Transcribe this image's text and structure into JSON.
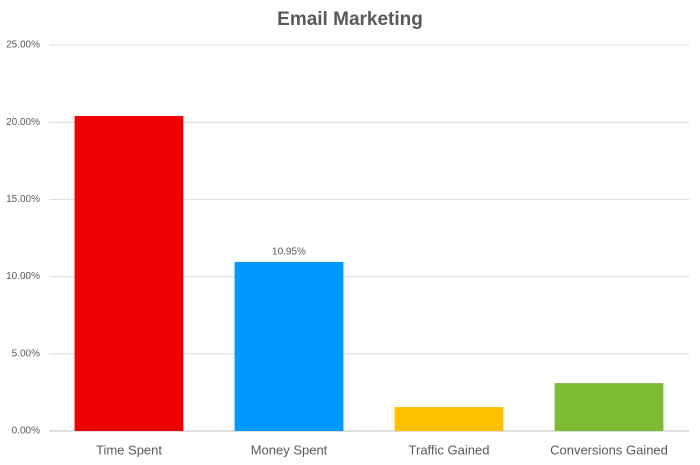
{
  "chart_data": {
    "type": "bar",
    "title": "Email Marketing",
    "categories": [
      "Time Spent",
      "Money Spent",
      "Traffic Gained",
      "Conversions Gained"
    ],
    "values": [
      20.4,
      10.95,
      1.55,
      3.1
    ],
    "value_labels": [
      null,
      "10.95%",
      null,
      null
    ],
    "colors": [
      "#ee0000",
      "#0099ff",
      "#ffc000",
      "#7dbb32"
    ],
    "ylim": [
      0,
      25
    ],
    "yticks": [
      {
        "value": 0,
        "label": "0.00%"
      },
      {
        "value": 5,
        "label": "5.00%"
      },
      {
        "value": 10,
        "label": "10.00%"
      },
      {
        "value": 15,
        "label": "15.00%"
      },
      {
        "value": 20,
        "label": "20.00%"
      },
      {
        "value": 25,
        "label": "25.00%"
      }
    ],
    "grid": true
  }
}
